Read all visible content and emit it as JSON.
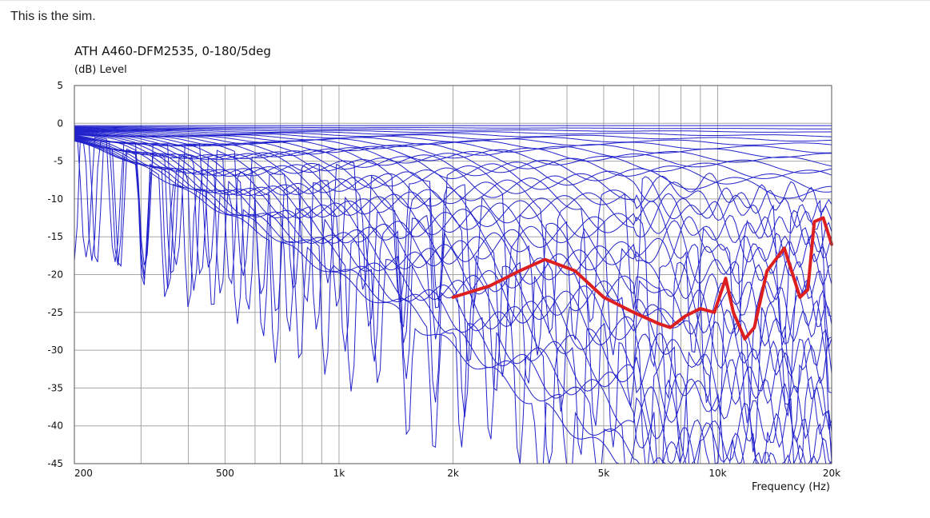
{
  "intro_text": "This is the sim.",
  "chart_data": {
    "type": "line",
    "title": "ATH A460-DFM2535, 0-180/5deg",
    "ylabel": "(dB)  Level",
    "xlabel": "Frequency  (Hz)",
    "xscale": "log",
    "xlim": [
      200,
      20000
    ],
    "ylim": [
      -45,
      5
    ],
    "grid": true,
    "y_ticks": [
      5,
      0,
      -5,
      -10,
      -15,
      -20,
      -25,
      -30,
      -35,
      -40,
      -45
    ],
    "x_ticks": [
      {
        "value": 200,
        "label": "200"
      },
      {
        "value": 500,
        "label": "500"
      },
      {
        "value": 1000,
        "label": "1k"
      },
      {
        "value": 2000,
        "label": "2k"
      },
      {
        "value": 5000,
        "label": "5k"
      },
      {
        "value": 10000,
        "label": "10k"
      },
      {
        "value": 20000,
        "label": "20k"
      }
    ],
    "series_color": "#2222cc",
    "overlay_color": "#dd1f1f",
    "series_count": 37,
    "angle_step_deg": 5,
    "angle_range_deg": [
      0,
      180
    ],
    "overlay_curve": {
      "x": [
        2000,
        2500,
        3000,
        3500,
        4200,
        5000,
        6000,
        7000,
        7500,
        8200,
        9000,
        9800,
        10500,
        11000,
        11800,
        12500,
        13500,
        15000,
        16500,
        17300,
        18000,
        19000,
        20000
      ],
      "y": [
        -23,
        -21.5,
        -19.5,
        -18,
        -19.5,
        -23,
        -25,
        -26.5,
        -27,
        -25.5,
        -24.5,
        -25,
        -20.5,
        -25,
        -28.5,
        -27,
        -19.5,
        -16.5,
        -23,
        -22,
        -13,
        -12.5,
        -16
      ]
    }
  }
}
